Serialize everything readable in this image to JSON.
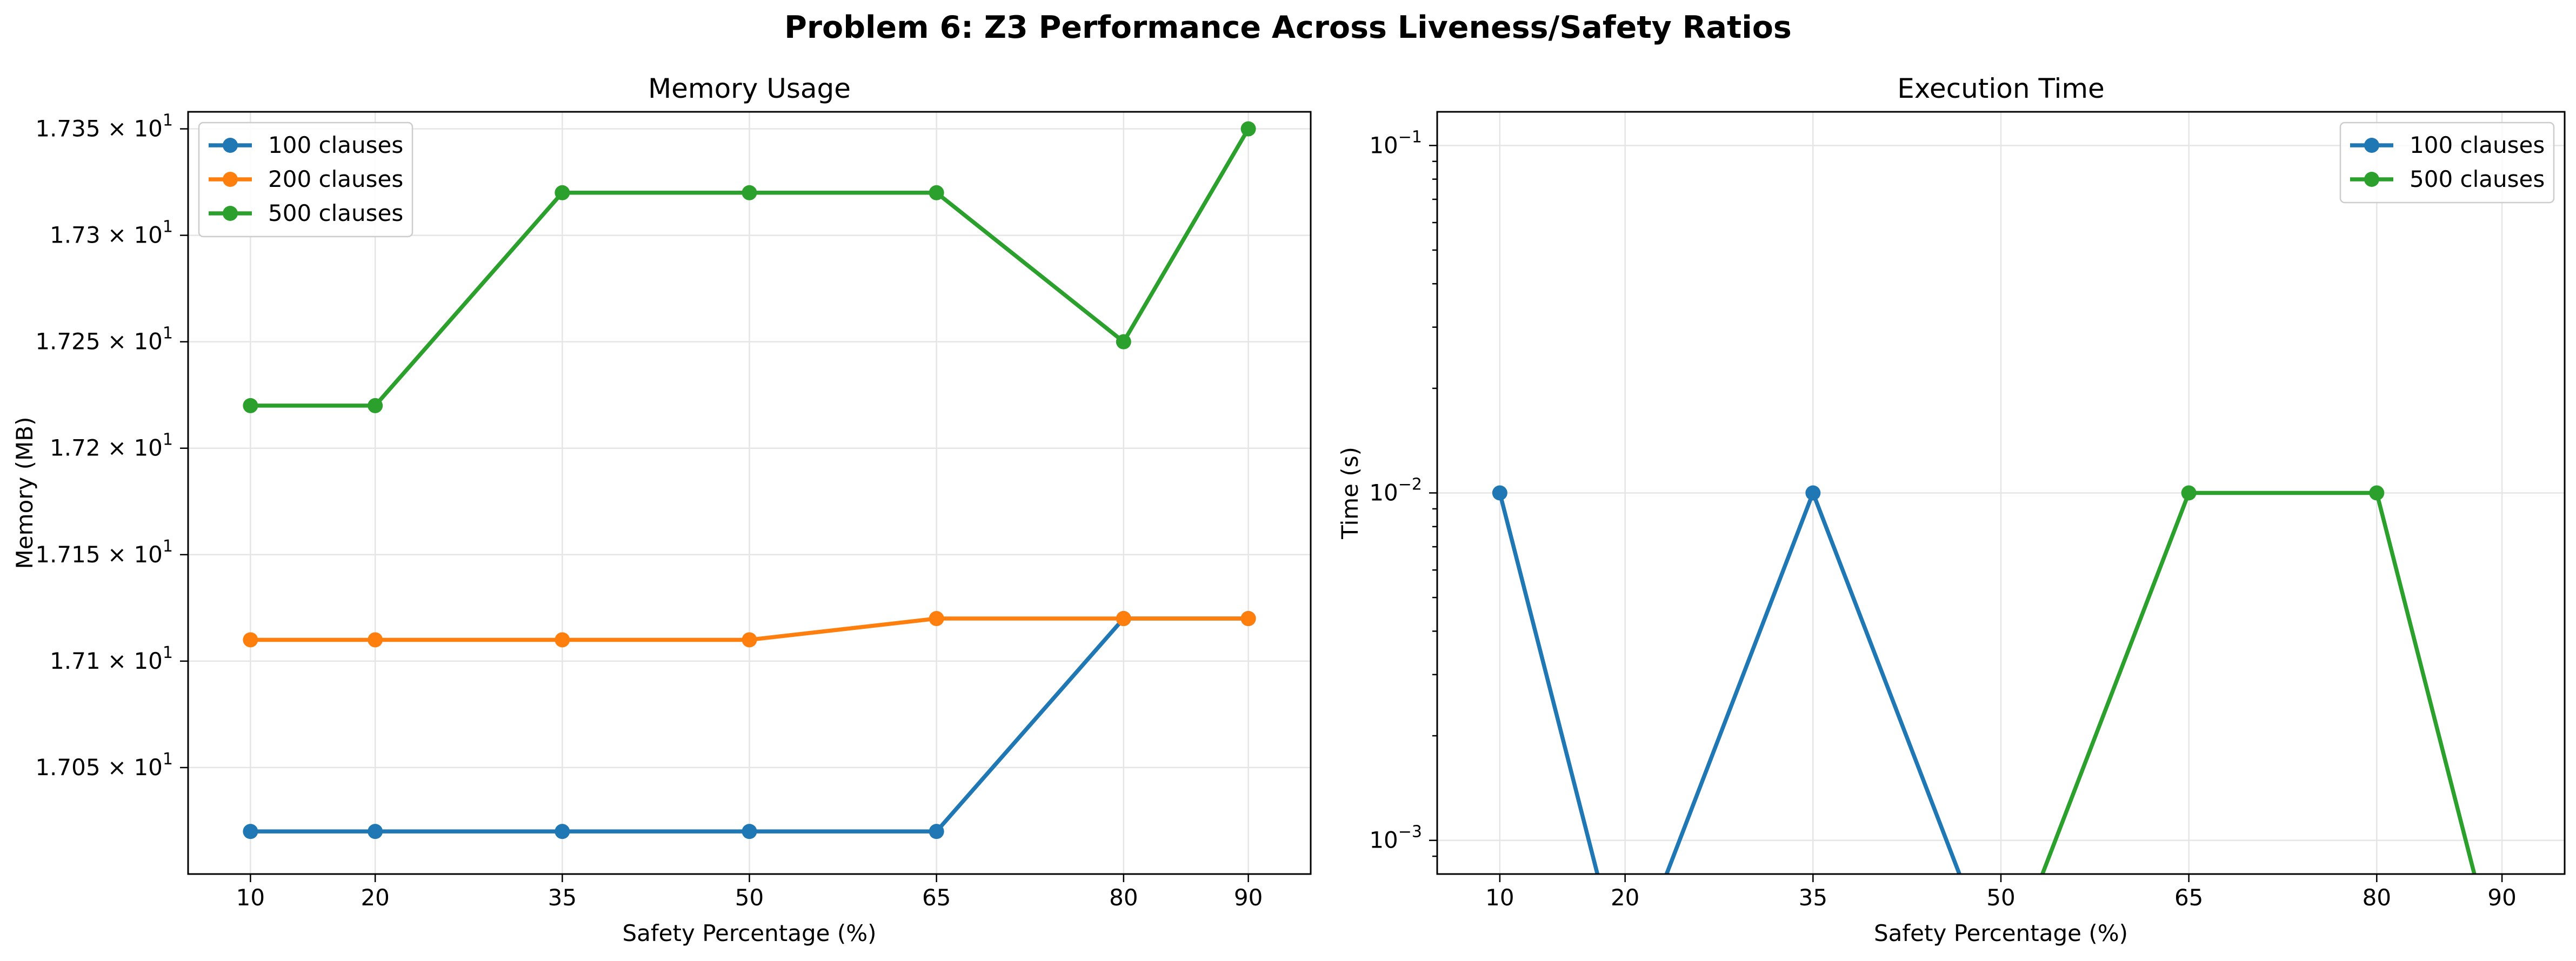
{
  "figure": {
    "title": "Problem 6: Z3 Performance Across Liveness/Safety Ratios"
  },
  "chart_data": [
    {
      "type": "line",
      "title": "Memory Usage",
      "xlabel": "Safety Percentage (%)",
      "ylabel": "Memory (MB)",
      "yscale": "linear",
      "x": [
        10,
        20,
        35,
        50,
        65,
        80,
        90
      ],
      "xticks": [
        10,
        20,
        35,
        50,
        65,
        80,
        90
      ],
      "xticklabels": [
        "10",
        "20",
        "35",
        "50",
        "65",
        "80",
        "90"
      ],
      "xlim": [
        5,
        95
      ],
      "ylim": [
        17.0,
        17.358
      ],
      "yticks": [
        17.05,
        17.1,
        17.15,
        17.2,
        17.25,
        17.3,
        17.35
      ],
      "yticklabels": [
        {
          "mant": "1.705",
          "exp": "1"
        },
        {
          "mant": "1.71",
          "exp": "1"
        },
        {
          "mant": "1.715",
          "exp": "1"
        },
        {
          "mant": "1.72",
          "exp": "1"
        },
        {
          "mant": "1.725",
          "exp": "1"
        },
        {
          "mant": "1.73",
          "exp": "1"
        },
        {
          "mant": "1.735",
          "exp": "1"
        }
      ],
      "grid": true,
      "legend_position": "upper-left",
      "series": [
        {
          "name": "100 clauses",
          "color": "#1f77b4",
          "values": [
            17.02,
            17.02,
            17.02,
            17.02,
            17.02,
            17.12,
            17.12
          ]
        },
        {
          "name": "200 clauses",
          "color": "#ff7f0e",
          "values": [
            17.11,
            17.11,
            17.11,
            17.11,
            17.12,
            17.12,
            17.12
          ]
        },
        {
          "name": "500 clauses",
          "color": "#2ca02c",
          "values": [
            17.22,
            17.22,
            17.32,
            17.32,
            17.32,
            17.25,
            17.35
          ]
        }
      ]
    },
    {
      "type": "line",
      "title": "Execution Time",
      "xlabel": "Safety Percentage (%)",
      "ylabel": "Time (s)",
      "yscale": "log",
      "xticks": [
        10,
        20,
        35,
        50,
        65,
        80,
        90
      ],
      "xticklabels": [
        "10",
        "20",
        "35",
        "50",
        "65",
        "80",
        "90"
      ],
      "xlim": [
        5,
        95
      ],
      "ylim": [
        0.0008,
        0.125
      ],
      "yticks": [
        0.001,
        0.01,
        0.1
      ],
      "yticklabels": [
        {
          "mant": "10",
          "exp": "−3"
        },
        {
          "mant": "10",
          "exp": "−2"
        },
        {
          "mant": "10",
          "exp": "−1"
        }
      ],
      "grid": true,
      "legend_position": "upper-right",
      "series": [
        {
          "name": "100 clauses",
          "color": "#1f77b4",
          "x": [
            10,
            20,
            35,
            50
          ],
          "values": [
            0.01,
            0,
            0.01,
            0
          ]
        },
        {
          "name": "500 clauses",
          "color": "#2ca02c",
          "x": [
            50,
            65,
            80,
            90
          ],
          "values": [
            0,
            0.01,
            0.01,
            0
          ]
        }
      ]
    }
  ]
}
